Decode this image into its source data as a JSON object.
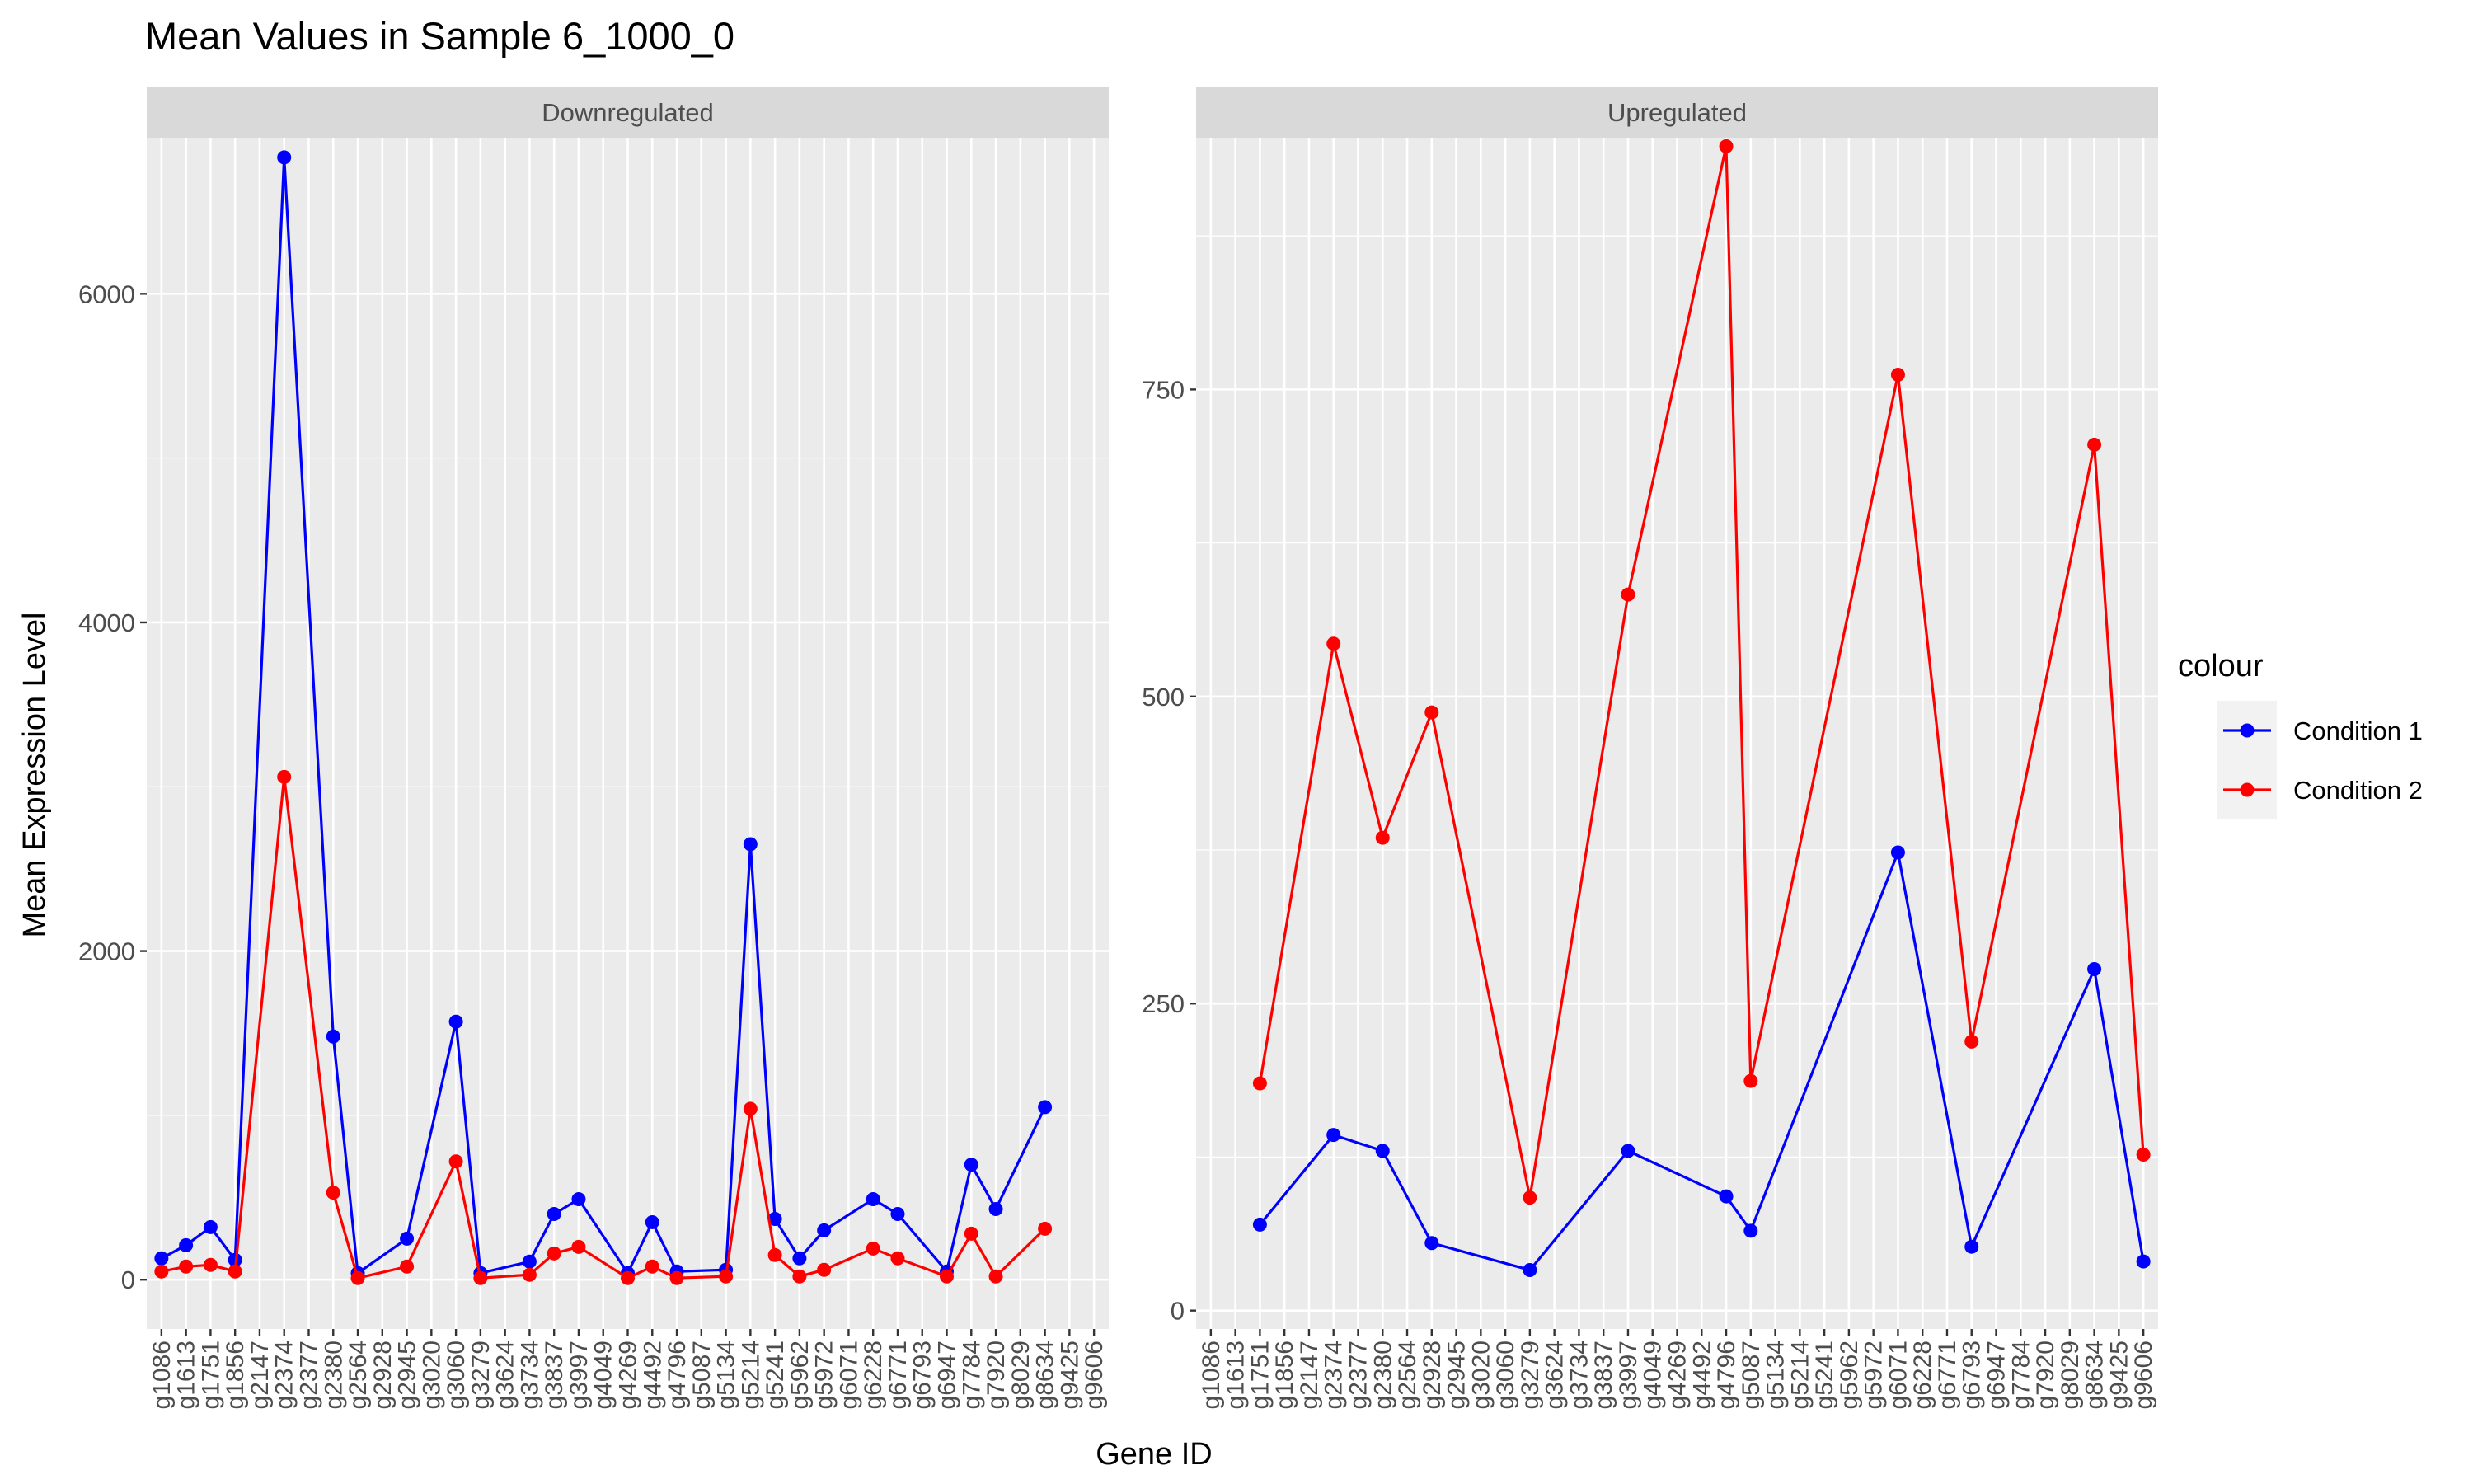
{
  "chart_data": {
    "type": "line",
    "title": "Mean Values in Sample 6_1000_0",
    "xlabel": "Gene ID",
    "ylabel": "Mean Expression Level",
    "legend": {
      "title": "colour",
      "placement": "right",
      "entries": [
        {
          "label": "Condition 1",
          "color": "#0000FF"
        },
        {
          "label": "Condition 2",
          "color": "#FF0000"
        }
      ]
    },
    "categories": [
      "g1086",
      "g1613",
      "g1751",
      "g1856",
      "g2147",
      "g2374",
      "g2377",
      "g2380",
      "g2564",
      "g2928",
      "g2945",
      "g3020",
      "g3060",
      "g3279",
      "g3624",
      "g3734",
      "g3837",
      "g3997",
      "g4049",
      "g4269",
      "g4492",
      "g4796",
      "g5087",
      "g5134",
      "g5214",
      "g5241",
      "g5962",
      "g5972",
      "g6071",
      "g6228",
      "g6771",
      "g6793",
      "g6947",
      "g7784",
      "g7920",
      "g8029",
      "g8634",
      "g9425",
      "g9606"
    ],
    "grid": true,
    "panels": [
      {
        "strip": "Downregulated",
        "ylim": [
          -300,
          6950
        ],
        "yticks": [
          0,
          2000,
          4000,
          6000
        ],
        "series": [
          {
            "name": "Condition 1",
            "color": "#0000FF",
            "points": [
              [
                "g1086",
                130
              ],
              [
                "g1613",
                210
              ],
              [
                "g1751",
                320
              ],
              [
                "g1856",
                120
              ],
              [
                "g2374",
                6830
              ],
              [
                "g2380",
                1480
              ],
              [
                "g2564",
                40
              ],
              [
                "g2945",
                250
              ],
              [
                "g3060",
                1570
              ],
              [
                "g3279",
                40
              ],
              [
                "g3734",
                110
              ],
              [
                "g3837",
                400
              ],
              [
                "g3997",
                490
              ],
              [
                "g4269",
                40
              ],
              [
                "g4492",
                350
              ],
              [
                "g4796",
                50
              ],
              [
                "g5134",
                60
              ],
              [
                "g5214",
                2650
              ],
              [
                "g5241",
                370
              ],
              [
                "g5962",
                130
              ],
              [
                "g5972",
                300
              ],
              [
                "g6228",
                490
              ],
              [
                "g6771",
                400
              ],
              [
                "g6947",
                50
              ],
              [
                "g7784",
                700
              ],
              [
                "g7920",
                430
              ],
              [
                "g8634",
                1050
              ]
            ]
          },
          {
            "name": "Condition 2",
            "color": "#FF0000",
            "points": [
              [
                "g1086",
                50
              ],
              [
                "g1613",
                80
              ],
              [
                "g1751",
                90
              ],
              [
                "g1856",
                50
              ],
              [
                "g2374",
                3060
              ],
              [
                "g2380",
                530
              ],
              [
                "g2564",
                10
              ],
              [
                "g2945",
                80
              ],
              [
                "g3060",
                720
              ],
              [
                "g3279",
                10
              ],
              [
                "g3734",
                30
              ],
              [
                "g3837",
                160
              ],
              [
                "g3997",
                200
              ],
              [
                "g4269",
                10
              ],
              [
                "g4492",
                80
              ],
              [
                "g4796",
                10
              ],
              [
                "g5134",
                20
              ],
              [
                "g5214",
                1040
              ],
              [
                "g5241",
                150
              ],
              [
                "g5962",
                20
              ],
              [
                "g5972",
                60
              ],
              [
                "g6228",
                190
              ],
              [
                "g6771",
                130
              ],
              [
                "g6947",
                20
              ],
              [
                "g7784",
                280
              ],
              [
                "g7920",
                20
              ],
              [
                "g8634",
                310
              ]
            ]
          }
        ]
      },
      {
        "strip": "Upregulated",
        "ylim": [
          -15,
          955
        ],
        "yticks": [
          0,
          250,
          500,
          750
        ],
        "series": [
          {
            "name": "Condition 1",
            "color": "#0000FF",
            "points": [
              [
                "g1751",
                70
              ],
              [
                "g2374",
                143
              ],
              [
                "g2380",
                130
              ],
              [
                "g2928",
                55
              ],
              [
                "g3279",
                33
              ],
              [
                "g3997",
                130
              ],
              [
                "g4796",
                93
              ],
              [
                "g5087",
                65
              ],
              [
                "g6071",
                373
              ],
              [
                "g6793",
                52
              ],
              [
                "g8634",
                278
              ],
              [
                "g9606",
                40
              ]
            ]
          },
          {
            "name": "Condition 2",
            "color": "#FF0000",
            "points": [
              [
                "g1751",
                185
              ],
              [
                "g2374",
                543
              ],
              [
                "g2380",
                385
              ],
              [
                "g2928",
                487
              ],
              [
                "g3279",
                92
              ],
              [
                "g3997",
                583
              ],
              [
                "g4796",
                948
              ],
              [
                "g5087",
                187
              ],
              [
                "g6071",
                762
              ],
              [
                "g6793",
                219
              ],
              [
                "g8634",
                705
              ],
              [
                "g9606",
                127
              ]
            ]
          }
        ]
      }
    ]
  }
}
